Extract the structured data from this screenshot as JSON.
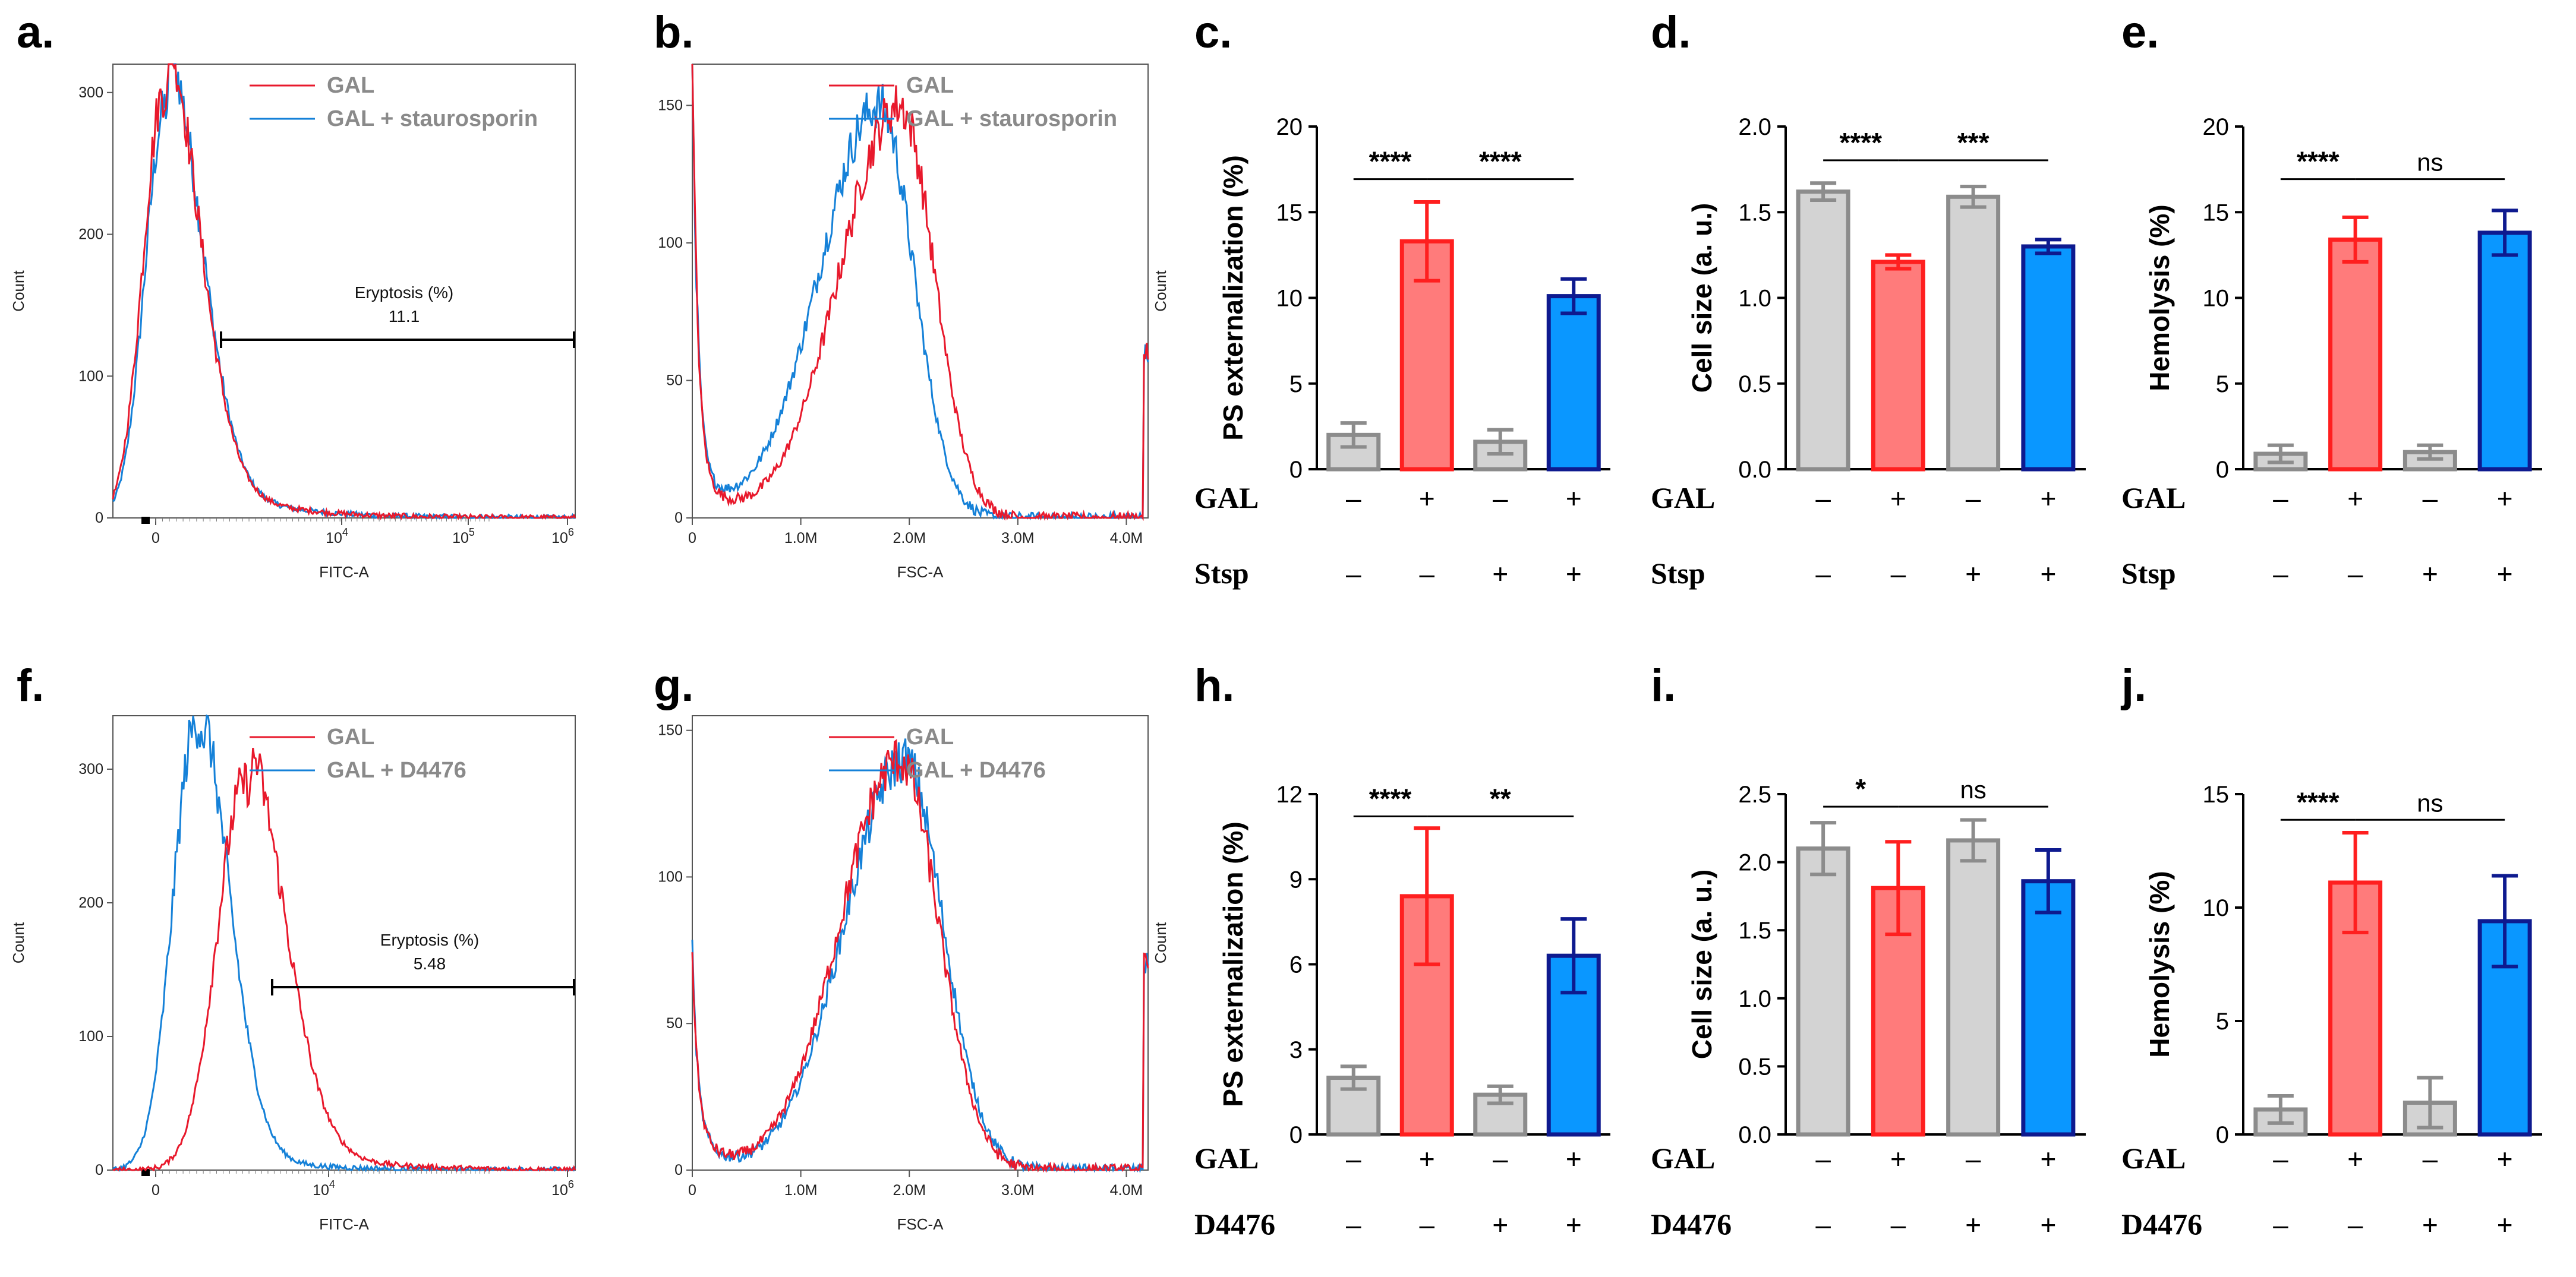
{
  "chart_data": [
    {
      "id": "a",
      "type": "line",
      "panel_label": "a.",
      "xlabel": "FITC-A",
      "ylabel": "Count",
      "xtick_labels": [
        "0",
        "10^4",
        "10^5",
        "10^6"
      ],
      "ylim": [
        0,
        320
      ],
      "yticks": [
        0,
        100,
        200,
        300
      ],
      "series": [
        {
          "name": "GAL",
          "color": "#e8192c"
        },
        {
          "name": "GAL + staurosporin",
          "color": "#1581d8"
        }
      ],
      "gate": {
        "label": "Eryptosis (%)",
        "value": "11.1"
      }
    },
    {
      "id": "b",
      "type": "line",
      "panel_label": "b.",
      "xlabel": "FSC-A",
      "ylabel": "Count",
      "xtick_labels": [
        "0",
        "1.0M",
        "2.0M",
        "3.0M",
        "4.0M"
      ],
      "xlim": [
        0,
        4.2
      ],
      "ylim": [
        0,
        165
      ],
      "yticks": [
        0,
        50,
        100,
        150
      ],
      "series": [
        {
          "name": "GAL",
          "color": "#e8192c"
        },
        {
          "name": "GAL + staurosporin",
          "color": "#1581d8"
        }
      ]
    },
    {
      "id": "c",
      "type": "bar",
      "panel_label": "c.",
      "ylabel": "PS externalization (%)",
      "ylim": [
        0,
        20
      ],
      "yticks": [
        0,
        5,
        10,
        15,
        20
      ],
      "values": [
        2.0,
        13.3,
        1.6,
        10.1
      ],
      "errors": [
        0.7,
        2.3,
        0.7,
        1.0
      ],
      "conditions": [
        {
          "name": "GAL",
          "signs": [
            "–",
            "+",
            "–",
            "+"
          ]
        },
        {
          "name": "Stsp",
          "signs": [
            "–",
            "–",
            "+",
            "+"
          ]
        }
      ],
      "significance": [
        {
          "from": 0,
          "to": 1,
          "label": "****",
          "y": 17.9
        },
        {
          "from": 1,
          "to": 3,
          "label": "****",
          "y": 17.9
        }
      ]
    },
    {
      "id": "d",
      "type": "bar",
      "panel_label": "d.",
      "ylabel": "Cell size (a. u.)",
      "ylim": [
        0,
        2.0
      ],
      "yticks": [
        0,
        0.5,
        1.0,
        1.5,
        2.0
      ],
      "ytick_labels": [
        "0.0",
        "0.5",
        "1.0",
        "1.5",
        "2.0"
      ],
      "values": [
        1.62,
        1.21,
        1.59,
        1.3
      ],
      "errors": [
        0.05,
        0.04,
        0.06,
        0.04
      ],
      "conditions": [
        {
          "name": "GAL",
          "signs": [
            "–",
            "+",
            "–",
            "+"
          ]
        },
        {
          "name": "Stsp",
          "signs": [
            "–",
            "–",
            "+",
            "+"
          ]
        }
      ],
      "significance": [
        {
          "from": 0,
          "to": 1,
          "label": "****",
          "y": 1.9
        },
        {
          "from": 1,
          "to": 3,
          "label": "***",
          "y": 1.9
        }
      ]
    },
    {
      "id": "e",
      "type": "bar",
      "panel_label": "e.",
      "ylabel": "Hemolysis (%)",
      "ylim": [
        0,
        20
      ],
      "yticks": [
        0,
        5,
        10,
        15,
        20
      ],
      "values": [
        0.9,
        13.4,
        1.0,
        13.8
      ],
      "errors": [
        0.5,
        1.3,
        0.4,
        1.3
      ],
      "conditions": [
        {
          "name": "GAL",
          "signs": [
            "–",
            "+",
            "–",
            "+"
          ]
        },
        {
          "name": "Stsp",
          "signs": [
            "–",
            "–",
            "+",
            "+"
          ]
        }
      ],
      "significance": [
        {
          "from": 0,
          "to": 1,
          "label": "****",
          "y": 17.9
        },
        {
          "from": 1,
          "to": 3,
          "label": "ns",
          "y": 17.9
        }
      ]
    },
    {
      "id": "f",
      "type": "line",
      "panel_label": "f.",
      "xlabel": "FITC-A",
      "ylabel": "Count",
      "xtick_labels": [
        "0",
        "10^4",
        "10^6"
      ],
      "ylim": [
        0,
        340
      ],
      "yticks": [
        0,
        100,
        200,
        300
      ],
      "series": [
        {
          "name": "GAL",
          "color": "#e8192c"
        },
        {
          "name": "GAL + D4476",
          "color": "#1581d8"
        }
      ],
      "gate": {
        "label": "Eryptosis (%)",
        "value": "5.48"
      }
    },
    {
      "id": "g",
      "type": "line",
      "panel_label": "g.",
      "xlabel": "FSC-A",
      "ylabel": "Count",
      "xtick_labels": [
        "0",
        "1.0M",
        "2.0M",
        "3.0M",
        "4.0M"
      ],
      "xlim": [
        0,
        4.2
      ],
      "ylim": [
        0,
        155
      ],
      "yticks": [
        0,
        50,
        100,
        150
      ],
      "series": [
        {
          "name": "GAL",
          "color": "#e8192c"
        },
        {
          "name": "GAL + D4476",
          "color": "#1581d8"
        }
      ]
    },
    {
      "id": "h",
      "type": "bar",
      "panel_label": "h.",
      "ylabel": "PS externalization (%)",
      "ylim": [
        0,
        12
      ],
      "yticks": [
        0,
        3,
        6,
        9,
        12
      ],
      "values": [
        2.0,
        8.4,
        1.4,
        6.3
      ],
      "errors": [
        0.4,
        2.4,
        0.3,
        1.3
      ],
      "conditions": [
        {
          "name": "GAL",
          "signs": [
            "–",
            "+",
            "–",
            "+"
          ]
        },
        {
          "name": "D4476",
          "signs": [
            "–",
            "–",
            "+",
            "+"
          ]
        }
      ],
      "significance": [
        {
          "from": 0,
          "to": 1,
          "label": "****",
          "y": 11.8
        },
        {
          "from": 1,
          "to": 3,
          "label": "**",
          "y": 11.8
        }
      ]
    },
    {
      "id": "i",
      "type": "bar",
      "panel_label": "i.",
      "ylabel": "Cell size (a. u.)",
      "ylim": [
        0,
        2.5
      ],
      "yticks": [
        0,
        0.5,
        1.0,
        1.5,
        2.0,
        2.5
      ],
      "ytick_labels": [
        "0.0",
        "0.5",
        "1.0",
        "1.5",
        "2.0",
        "2.5"
      ],
      "values": [
        2.1,
        1.81,
        2.16,
        1.86
      ],
      "errors": [
        0.19,
        0.34,
        0.15,
        0.23
      ],
      "conditions": [
        {
          "name": "GAL",
          "signs": [
            "–",
            "+",
            "–",
            "+"
          ]
        },
        {
          "name": "D4476",
          "signs": [
            "–",
            "–",
            "+",
            "+"
          ]
        }
      ],
      "significance": [
        {
          "from": 0,
          "to": 1,
          "label": "*",
          "y": 2.53
        },
        {
          "from": 1,
          "to": 3,
          "label": "ns",
          "y": 2.53
        }
      ]
    },
    {
      "id": "j",
      "type": "bar",
      "panel_label": "j.",
      "ylabel": "Hemolysis (%)",
      "ylim": [
        0,
        15
      ],
      "yticks": [
        0,
        5,
        10,
        15
      ],
      "values": [
        1.1,
        11.1,
        1.4,
        9.4
      ],
      "errors": [
        0.6,
        2.2,
        1.1,
        2.0
      ],
      "conditions": [
        {
          "name": "GAL",
          "signs": [
            "–",
            "+",
            "–",
            "+"
          ]
        },
        {
          "name": "D4476",
          "signs": [
            "–",
            "–",
            "+",
            "+"
          ]
        }
      ],
      "significance": [
        {
          "from": 0,
          "to": 1,
          "label": "****",
          "y": 14.6
        },
        {
          "from": 1,
          "to": 3,
          "label": "ns",
          "y": 14.6
        }
      ]
    }
  ],
  "colors": {
    "control": "#d3d3d3",
    "control_edge": "#8c8c8c",
    "gal": "#ff7b7b",
    "gal_edge": "#ff1f1f",
    "treat": "#0a97ff",
    "treat_edge": "#0e1a8f",
    "hist_red": "#e8192c",
    "hist_blue": "#1581d8"
  }
}
